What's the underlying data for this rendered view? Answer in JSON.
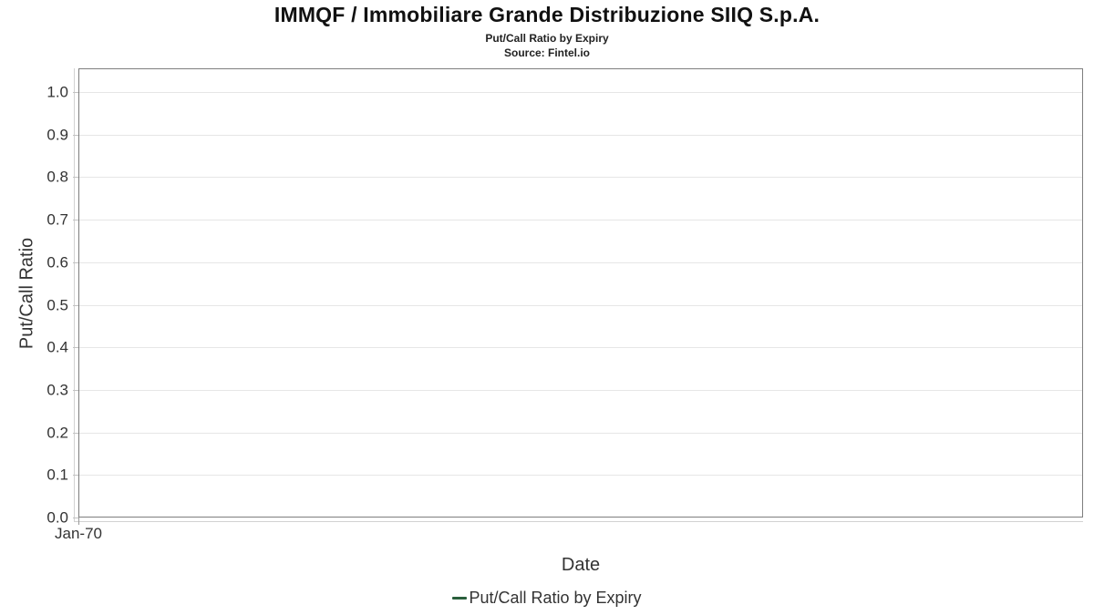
{
  "header": {
    "title": "IMMQF / Immobiliare Grande Distribuzione SIIQ S.p.A.",
    "subtitle": "Put/Call Ratio by Expiry",
    "source": "Source: Fintel.io"
  },
  "chart_data": {
    "type": "line",
    "title": "IMMQF / Immobiliare Grande Distribuzione SIIQ S.p.A.",
    "subtitle": "Put/Call Ratio by Expiry",
    "source": "Source: Fintel.io",
    "xlabel": "Date",
    "ylabel": "Put/Call Ratio",
    "ylim": [
      0.0,
      1.0557
    ],
    "yticks": [
      0.0,
      0.1,
      0.2,
      0.3,
      0.4,
      0.5,
      0.6,
      0.7,
      0.8,
      0.9,
      1.0
    ],
    "ytick_decimals": 1,
    "xticks": [
      "Jan-70"
    ],
    "xtick_positions": [
      0
    ],
    "grid": "horizontal",
    "legend_position": "bottom-center",
    "series": [
      {
        "name": "Put/Call Ratio by Expiry",
        "color": "#2a5f3c",
        "x": [],
        "y": []
      }
    ]
  },
  "legend": {
    "items": [
      {
        "label": "Put/Call Ratio by Expiry",
        "color": "#2a5f3c"
      }
    ]
  },
  "colors": {
    "plot_border": "#7e7e7e",
    "gridline": "#e6e6e6",
    "axis_line": "#d2d2d2",
    "text_primary": "#111111",
    "text_secondary": "#333333",
    "series_green": "#2a5f3c"
  }
}
